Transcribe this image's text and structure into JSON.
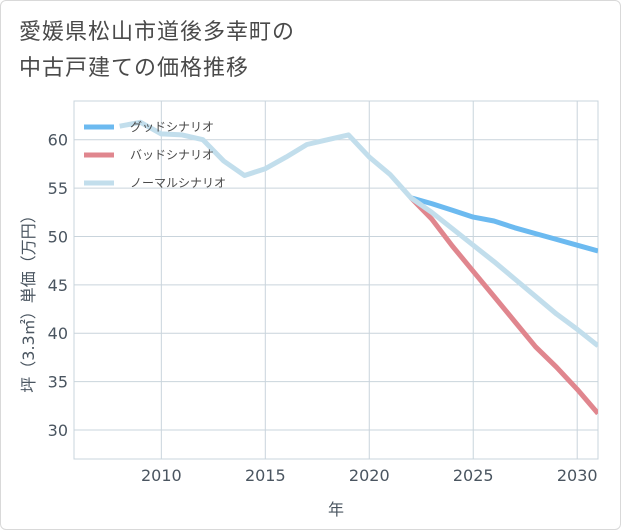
{
  "title_line1": "愛媛県松山市道後多幸町の",
  "title_line2": "中古戸建ての価格推移",
  "chart_data": {
    "type": "line",
    "title": "愛媛県松山市道後多幸町の中古戸建ての価格推移",
    "xlabel": "年",
    "ylabel": "坪（3.3㎡）単価（万円）",
    "xlim": [
      2005.8,
      2031
    ],
    "ylim": [
      27,
      64
    ],
    "xticks": [
      2010,
      2015,
      2020,
      2025,
      2030
    ],
    "yticks": [
      30,
      35,
      40,
      45,
      50,
      55,
      60
    ],
    "grid": true,
    "legend_position": "top-left",
    "series": [
      {
        "name": "グッドシナリオ",
        "color": "#6cbaf0",
        "x": [
          2022,
          2023,
          2024,
          2025,
          2026,
          2027,
          2028,
          2029,
          2030,
          2031
        ],
        "y": [
          54.0,
          53.4,
          52.7,
          52.0,
          51.6,
          50.9,
          50.3,
          49.7,
          49.1,
          48.5
        ]
      },
      {
        "name": "バッドシナリオ",
        "color": "#e0868e",
        "x": [
          2022,
          2023,
          2024,
          2025,
          2026,
          2027,
          2028,
          2029,
          2030,
          2031
        ],
        "y": [
          54.0,
          51.8,
          49.0,
          46.4,
          43.8,
          41.2,
          38.6,
          36.5,
          34.2,
          31.7
        ]
      },
      {
        "name": "ノーマルシナリオ",
        "color": "#c2deec",
        "x": [
          2008,
          2009,
          2010,
          2011,
          2012,
          2013,
          2014,
          2015,
          2016,
          2017,
          2018,
          2019,
          2020,
          2021,
          2022,
          2023,
          2024,
          2025,
          2026,
          2027,
          2028,
          2029,
          2030,
          2031
        ],
        "y": [
          61.4,
          61.8,
          60.6,
          60.5,
          60.0,
          57.8,
          56.3,
          57.0,
          58.2,
          59.5,
          60.0,
          60.5,
          58.2,
          56.4,
          54.0,
          52.5,
          50.8,
          49.1,
          47.4,
          45.6,
          43.8,
          42.0,
          40.4,
          38.7
        ]
      }
    ]
  }
}
